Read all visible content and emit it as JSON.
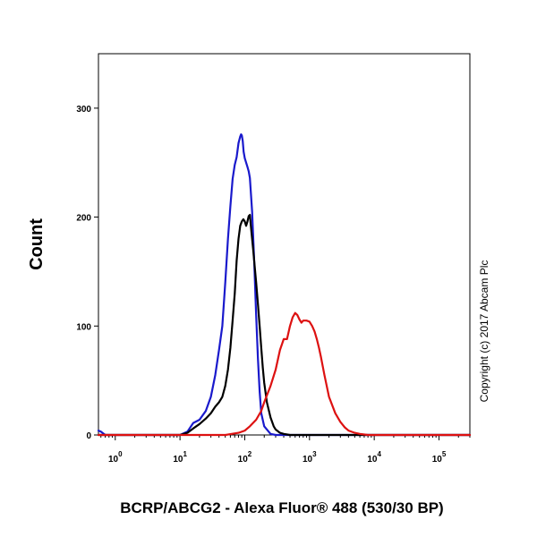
{
  "chart_data": {
    "type": "line",
    "xlabel": "BCRP/ABCG2 - Alexa Fluor® 488 (530/30 BP)",
    "ylabel": "Count",
    "x_scale": "log",
    "xlim": [
      0.55,
      300000
    ],
    "ylim": [
      0,
      350
    ],
    "x_ticks": [
      {
        "value": 1,
        "base": "10",
        "exp": "0"
      },
      {
        "value": 10,
        "base": "10",
        "exp": "1"
      },
      {
        "value": 100,
        "base": "10",
        "exp": "2"
      },
      {
        "value": 1000,
        "base": "10",
        "exp": "3"
      },
      {
        "value": 10000,
        "base": "10",
        "exp": "4"
      },
      {
        "value": 100000,
        "base": "10",
        "exp": "5"
      }
    ],
    "y_ticks": [
      {
        "value": 0,
        "label": "0"
      },
      {
        "value": 100,
        "label": "100"
      },
      {
        "value": 200,
        "label": "200"
      },
      {
        "value": 300,
        "label": "300"
      }
    ],
    "series": [
      {
        "color": "#1a1acc",
        "x": [
          0.55,
          0.6,
          0.7,
          1,
          5,
          10,
          13,
          16,
          20,
          25,
          30,
          35,
          40,
          45,
          50,
          55,
          60,
          65,
          70,
          75,
          80,
          85,
          88,
          90,
          93,
          96,
          100,
          105,
          110,
          115,
          120,
          130,
          140,
          150,
          160,
          170,
          180,
          200,
          250,
          300,
          400,
          1000,
          10000,
          300000
        ],
        "y": [
          4,
          3,
          0,
          0,
          0,
          0,
          3,
          11,
          14,
          22,
          35,
          55,
          78,
          100,
          140,
          180,
          210,
          235,
          248,
          255,
          268,
          274,
          276,
          275,
          270,
          260,
          254,
          250,
          246,
          242,
          236,
          205,
          160,
          110,
          70,
          40,
          20,
          8,
          1,
          0,
          0,
          0,
          0,
          0
        ]
      },
      {
        "color": "#000000",
        "x": [
          0.55,
          1,
          5,
          10,
          13,
          16,
          20,
          25,
          30,
          35,
          40,
          45,
          50,
          55,
          60,
          65,
          70,
          75,
          80,
          85,
          90,
          95,
          100,
          105,
          110,
          115,
          120,
          125,
          130,
          135,
          140,
          150,
          160,
          170,
          180,
          190,
          200,
          220,
          250,
          280,
          300,
          350,
          400,
          500,
          1000,
          10000,
          300000
        ],
        "y": [
          0,
          0,
          0,
          0,
          2,
          6,
          10,
          15,
          20,
          26,
          30,
          35,
          45,
          60,
          80,
          105,
          130,
          160,
          180,
          192,
          196,
          198,
          196,
          192,
          196,
          201,
          202,
          190,
          180,
          170,
          160,
          140,
          120,
          100,
          80,
          62,
          48,
          30,
          16,
          8,
          5,
          2,
          1,
          0,
          0,
          0,
          0
        ]
      },
      {
        "color": "#dd1111",
        "x": [
          0.55,
          1,
          10,
          50,
          80,
          100,
          120,
          150,
          180,
          200,
          250,
          300,
          350,
          400,
          450,
          500,
          550,
          600,
          650,
          700,
          750,
          800,
          900,
          1000,
          1100,
          1200,
          1300,
          1400,
          1500,
          1700,
          2000,
          2500,
          3000,
          3500,
          4000,
          5000,
          6000,
          8000,
          10000,
          300000
        ],
        "y": [
          0,
          0,
          0,
          0,
          2,
          4,
          8,
          14,
          22,
          30,
          45,
          60,
          78,
          88,
          88,
          100,
          108,
          112,
          110,
          106,
          103,
          105,
          105,
          104,
          100,
          95,
          88,
          80,
          72,
          55,
          35,
          20,
          12,
          7,
          4,
          2,
          1,
          0,
          0,
          0
        ]
      }
    ],
    "annotations": [
      "Copyright (c) 2017 Abcam Plc"
    ]
  }
}
